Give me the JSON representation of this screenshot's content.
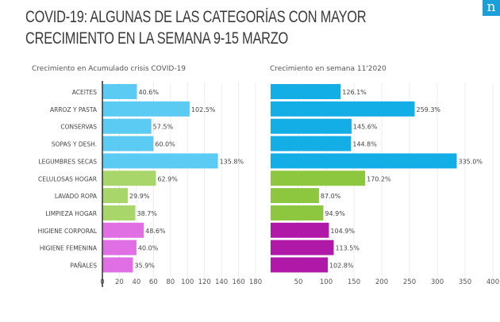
{
  "title": "COVID-19: ALGUNAS DE LAS CATEGORÍAS CON MAYOR CRECIMIENTO EN LA SEMANA 9-15 MARZO",
  "logo": "n",
  "chart_data": [
    {
      "type": "bar",
      "orientation": "horizontal",
      "title": "Crecimiento en Acumulado crisis COVID-19",
      "categories": [
        "ACEITES",
        "ARROZ Y PASTA",
        "CONSERVAS",
        "SOPAS Y DESH.",
        "LEGUMBRES SECAS",
        "CELULOSAS HOGAR",
        "LAVADO ROPA",
        "LIMPIEZA HOGAR",
        "HIGIENE CORPORAL",
        "HIGIENE FEMENINA",
        "PAÑALES"
      ],
      "values": [
        40.6,
        102.5,
        57.5,
        60.0,
        135.8,
        62.9,
        29.9,
        38.7,
        48.6,
        40.0,
        35.9
      ],
      "labels": [
        "40.6%",
        "102.5%",
        "57.5%",
        "60.0%",
        "135.8%",
        "62.9%",
        "29.9%",
        "38.7%",
        "48.6%",
        "40.0%",
        "35.9%"
      ],
      "colors": [
        "#5ccbf3",
        "#5ccbf3",
        "#5ccbf3",
        "#5ccbf3",
        "#5ccbf3",
        "#a9d66b",
        "#a9d66b",
        "#a9d66b",
        "#df6fe3",
        "#df6fe3",
        "#df6fe3"
      ],
      "xlim": [
        0,
        180
      ],
      "xticks": [
        0,
        20,
        40,
        60,
        80,
        100,
        120,
        140,
        160,
        180
      ],
      "grid": true
    },
    {
      "type": "bar",
      "orientation": "horizontal",
      "title": "Crecimiento en semana 11'2020",
      "categories": [
        "ACEITES",
        "ARROZ Y PASTA",
        "CONSERVAS",
        "SOPAS Y DESH.",
        "LEGUMBRES SECAS",
        "CELULOSAS HOGAR",
        "LAVADO ROPA",
        "LIMPIEZA HOGAR",
        "HIGIENE CORPORAL",
        "HIGIENE FEMENINA",
        "PAÑALES"
      ],
      "values": [
        126.1,
        259.3,
        145.6,
        144.8,
        335.0,
        170.2,
        87.0,
        94.9,
        104.9,
        113.5,
        102.8
      ],
      "labels": [
        "126.1%",
        "259.3%",
        "145.6%",
        "144.8%",
        "335.0%",
        "170.2%",
        "87.0%",
        "94.9%",
        "104.9%",
        "113.5%",
        "102.8%"
      ],
      "colors": [
        "#14aee6",
        "#14aee6",
        "#14aee6",
        "#14aee6",
        "#14aee6",
        "#8dc63f",
        "#8dc63f",
        "#8dc63f",
        "#b018a8",
        "#b018a8",
        "#b018a8"
      ],
      "xlim": [
        0,
        400
      ],
      "xticks": [
        50,
        100,
        150,
        200,
        250,
        300,
        350,
        400
      ],
      "grid": true
    }
  ]
}
